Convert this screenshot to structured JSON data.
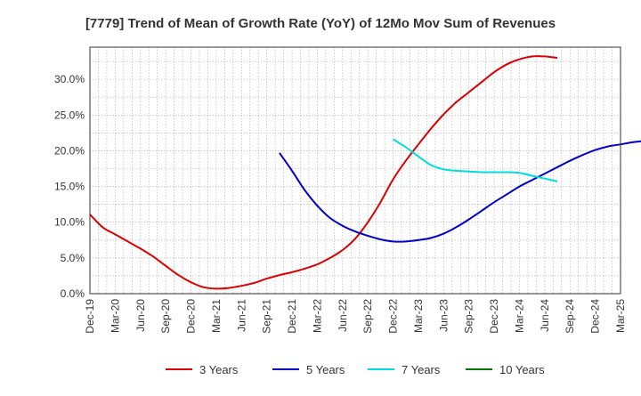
{
  "chart_data": {
    "type": "line",
    "title": "[7779]  Trend of Mean of Growth Rate (YoY) of 12Mo Mov Sum of Revenues",
    "xlabel": "",
    "ylabel": "",
    "x_tick_labels": [
      "Dec-19",
      "Mar-20",
      "Jun-20",
      "Sep-20",
      "Dec-20",
      "Mar-21",
      "Jun-21",
      "Sep-21",
      "Dec-21",
      "Mar-22",
      "Jun-22",
      "Sep-22",
      "Dec-22",
      "Mar-23",
      "Jun-23",
      "Sep-23",
      "Dec-23",
      "Mar-24",
      "Jun-24",
      "Sep-24",
      "Dec-24",
      "Mar-25"
    ],
    "y_ticks": [
      0,
      5,
      10,
      15,
      20,
      25,
      30
    ],
    "y_tick_labels": [
      "0.0%",
      "5.0%",
      "10.0%",
      "15.0%",
      "20.0%",
      "25.0%",
      "30.0%"
    ],
    "ylim": [
      0,
      34.5
    ],
    "grid": true,
    "legend_position": "bottom",
    "series": [
      {
        "name": "3 Years",
        "color": "#dd0000",
        "start_index": 0,
        "values": [
          11.1,
          9.3,
          8.3,
          7.3,
          6.3,
          5.2,
          3.9,
          2.6,
          1.6,
          0.9,
          0.7,
          0.8,
          1.1,
          1.5,
          2.1,
          2.6,
          3.0,
          3.5,
          4.1,
          5.0,
          6.1,
          7.7,
          10.0,
          12.8,
          16.0,
          18.6,
          20.9,
          23.1,
          25.1,
          26.8,
          28.2,
          29.6,
          31.0,
          32.1,
          32.8,
          33.2,
          33.2,
          33.0
        ]
      },
      {
        "name": "5 Years",
        "color": "#0000cc",
        "start_index": 15,
        "values": [
          19.7,
          17.2,
          14.5,
          12.3,
          10.6,
          9.5,
          8.7,
          8.1,
          7.6,
          7.3,
          7.3,
          7.5,
          7.8,
          8.4,
          9.3,
          10.4,
          11.6,
          12.8,
          13.9,
          15.0,
          15.9,
          16.8,
          17.7,
          18.6,
          19.4,
          20.1,
          20.6,
          20.9,
          21.2,
          21.4
        ]
      },
      {
        "name": "7 Years",
        "color": "#00dddd",
        "start_index": 24,
        "values": [
          21.6,
          20.5,
          19.2,
          18.0,
          17.4,
          17.2,
          17.1,
          17.0,
          17.0,
          17.0,
          16.9,
          16.5,
          16.1,
          15.7
        ]
      },
      {
        "name": "10 Years",
        "color": "#007700",
        "start_index": 0,
        "values": []
      }
    ]
  }
}
